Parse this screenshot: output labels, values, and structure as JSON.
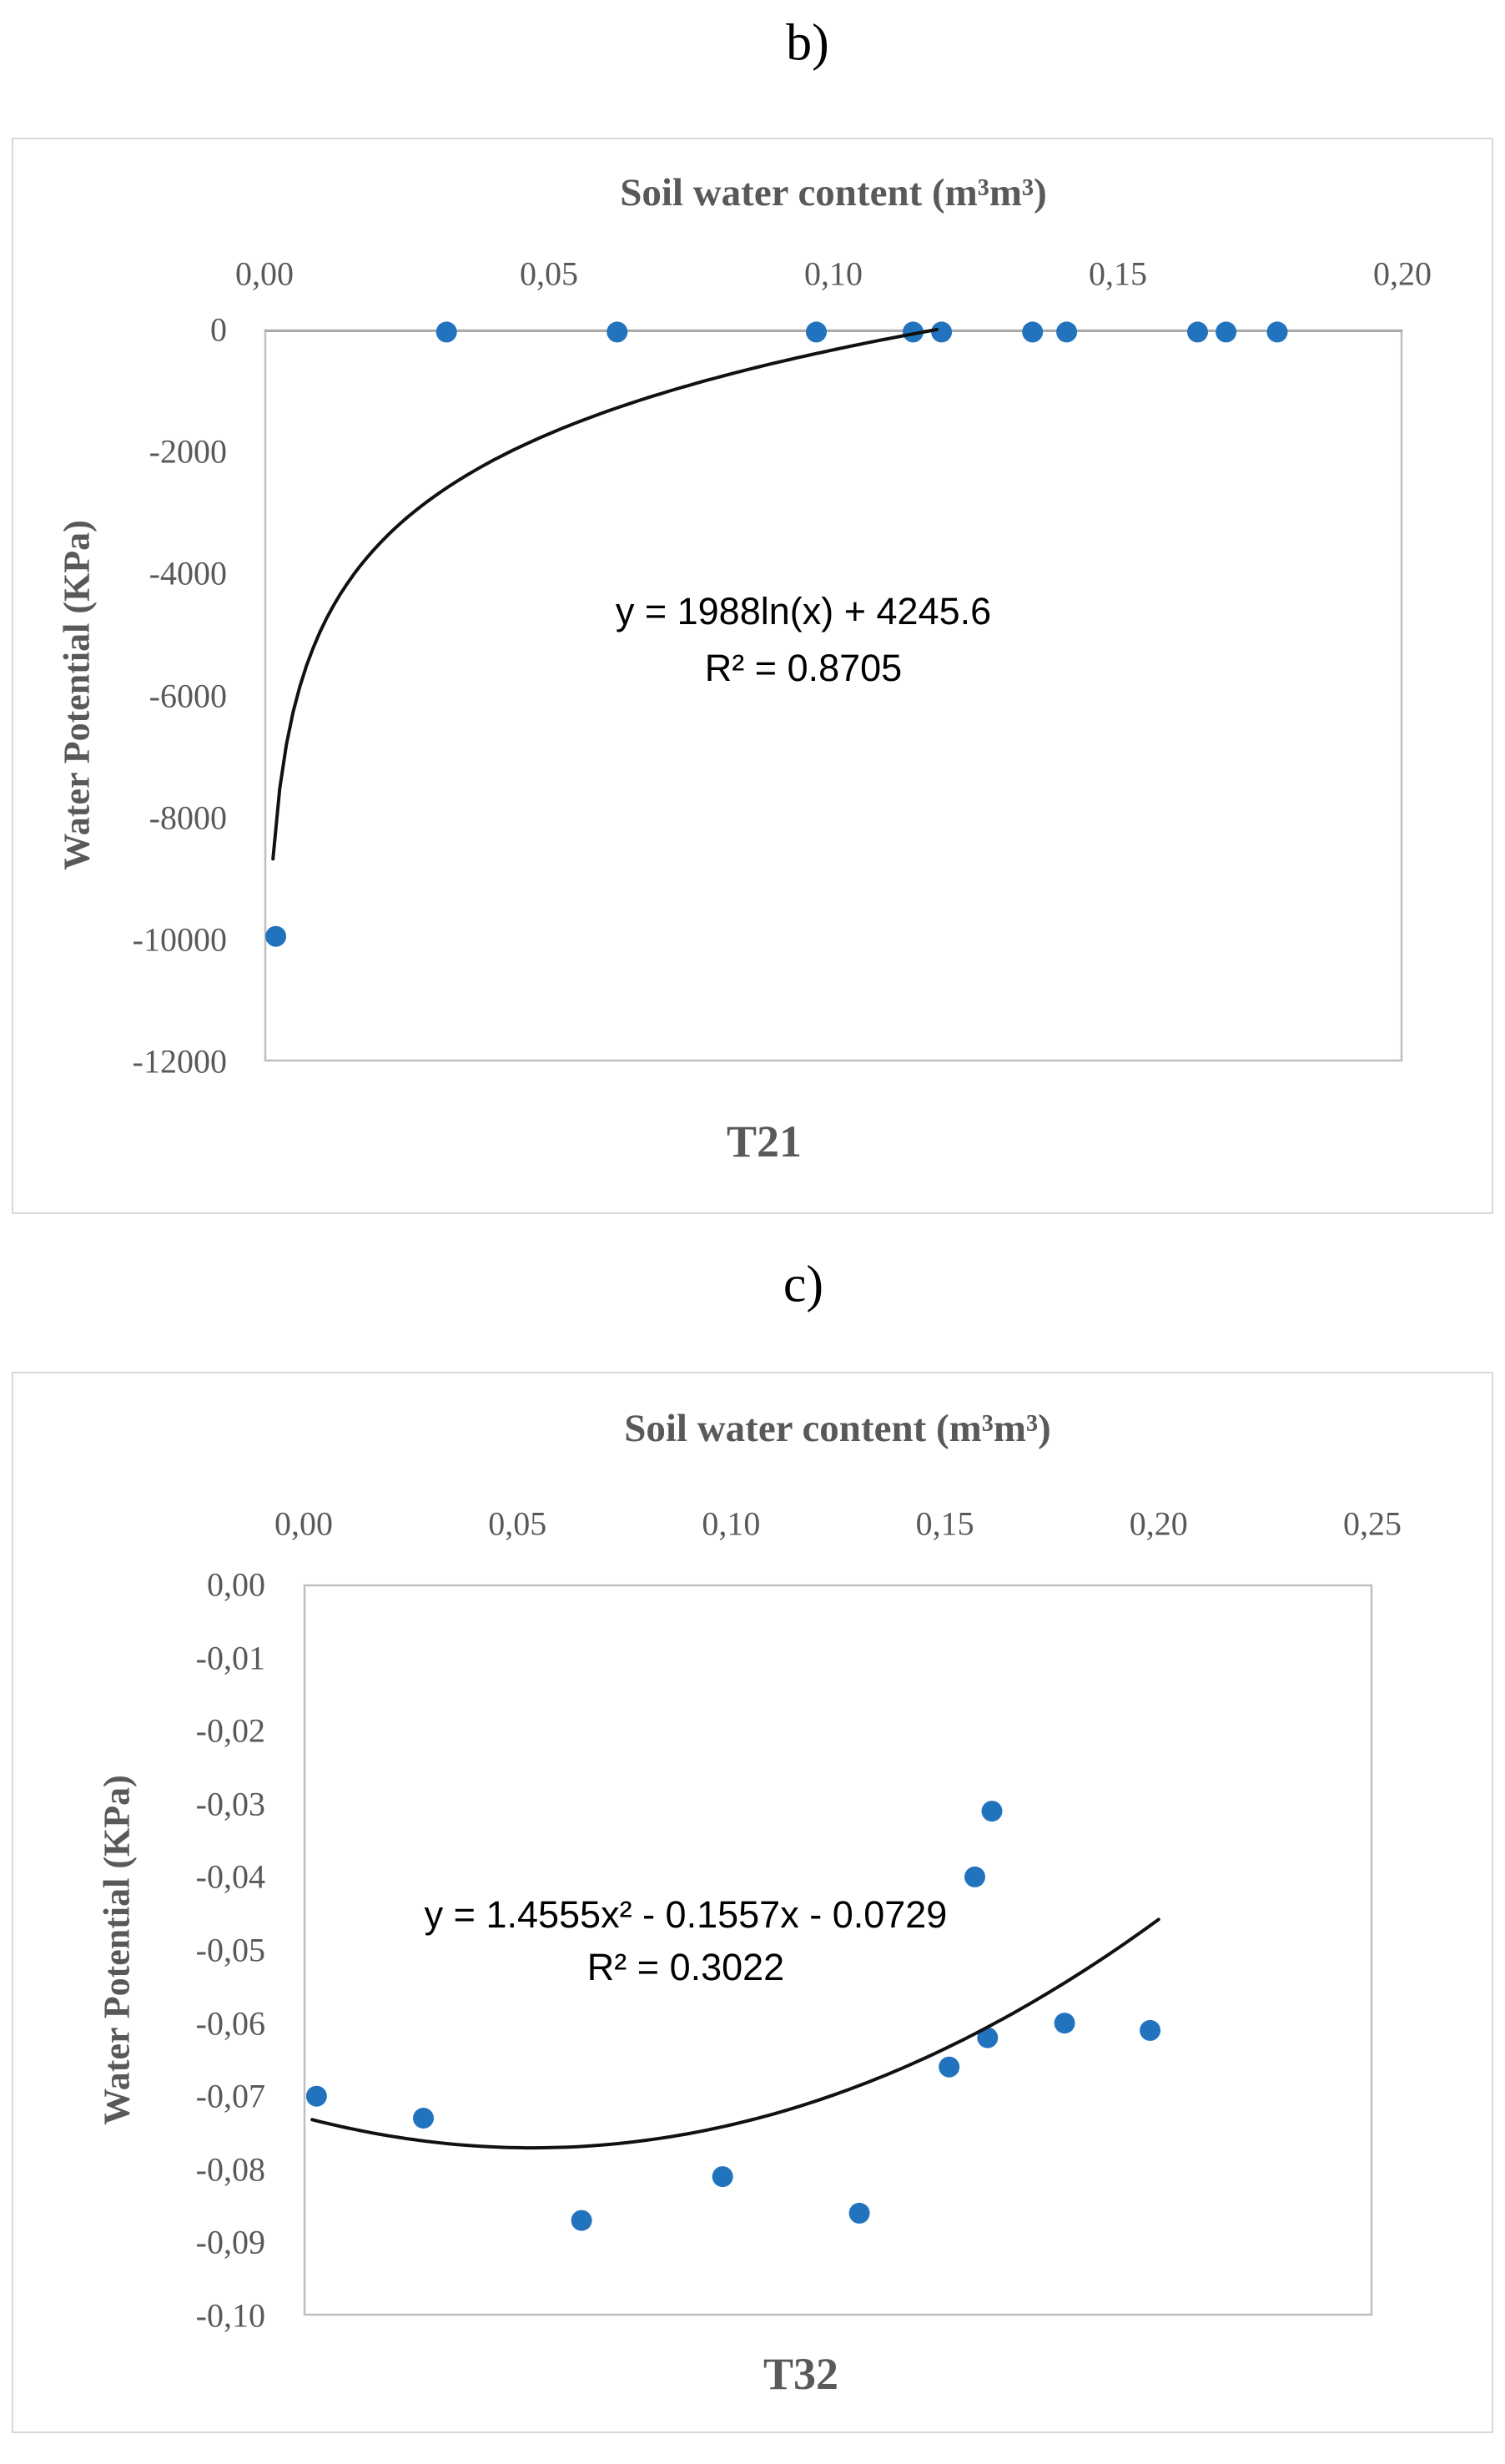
{
  "figure": {
    "panel_labels": [
      "b)",
      "c)"
    ]
  },
  "colors": {
    "point": "#2273BE",
    "trendline": "#111111",
    "axis_text": "#595959",
    "plot_border": "#BFBFBF",
    "axis_line": "#ABABAB",
    "panel_border": "#D8D8D8"
  },
  "chart_data": [
    {
      "id": "b",
      "type": "scatter",
      "panel_label": "b)",
      "title": "Soil water content (m³m³)",
      "ylabel": "Water Potential (KPa)",
      "bottom_label": "T21",
      "grid": false,
      "legend_position": "none",
      "xlim": [
        0,
        0.2
      ],
      "ylim": [
        -12000,
        0
      ],
      "x_ticks": {
        "values": [
          0,
          0.05,
          0.1,
          0.15,
          0.2
        ],
        "labels": [
          "0,00",
          "0,05",
          "0,10",
          "0,15",
          "0,20"
        ]
      },
      "y_ticks": {
        "values": [
          0,
          -2000,
          -4000,
          -6000,
          -8000,
          -10000,
          -12000
        ],
        "labels": [
          "0",
          "-2000",
          "-4000",
          "-6000",
          "-8000",
          "-10000",
          "-12000"
        ]
      },
      "points": [
        [
          0.002,
          -9950
        ],
        [
          0.032,
          -40
        ],
        [
          0.062,
          -40
        ],
        [
          0.097,
          -40
        ],
        [
          0.114,
          -40
        ],
        [
          0.119,
          -40
        ],
        [
          0.135,
          -40
        ],
        [
          0.141,
          -40
        ],
        [
          0.164,
          -40
        ],
        [
          0.169,
          -40
        ],
        [
          0.178,
          -40
        ]
      ],
      "trendline": {
        "kind": "logarithmic",
        "coefficients": {
          "a": 1988,
          "b": 4245.6
        },
        "x_start": 0.0015,
        "x_end": 0.1182,
        "equation": "y = 1988ln(x) + 4245.6",
        "r_squared": "R² = 0.8705"
      }
    },
    {
      "id": "c",
      "type": "scatter",
      "panel_label": "c)",
      "title": "Soil water content (m³m³)",
      "ylabel": "Water Potential (KPa)",
      "bottom_label": "T32",
      "grid": false,
      "legend_position": "none",
      "xlim": [
        0,
        0.25
      ],
      "ylim": [
        -0.1,
        0
      ],
      "x_ticks": {
        "values": [
          0,
          0.05,
          0.1,
          0.15,
          0.2,
          0.25
        ],
        "labels": [
          "0,00",
          "0,05",
          "0,10",
          "0,15",
          "0,20",
          "0,25"
        ]
      },
      "y_ticks": {
        "values": [
          0,
          -0.01,
          -0.02,
          -0.03,
          -0.04,
          -0.05,
          -0.06,
          -0.07,
          -0.08,
          -0.09,
          -0.1
        ],
        "labels": [
          "0,00",
          "-0,01",
          "-0,02",
          "-0,03",
          "-0,04",
          "-0,05",
          "-0,06",
          "-0,07",
          "-0,08",
          "-0,09",
          "-0,10"
        ]
      },
      "points": [
        [
          0.003,
          -0.07
        ],
        [
          0.028,
          -0.073
        ],
        [
          0.065,
          -0.087
        ],
        [
          0.098,
          -0.081
        ],
        [
          0.13,
          -0.086
        ],
        [
          0.151,
          -0.066
        ],
        [
          0.157,
          -0.04
        ],
        [
          0.16,
          -0.062
        ],
        [
          0.161,
          -0.031
        ],
        [
          0.178,
          -0.06
        ],
        [
          0.198,
          -0.061
        ]
      ],
      "trendline": {
        "kind": "quadratic",
        "coefficients": {
          "a": 1.4555,
          "b": -0.1557,
          "c": -0.0729
        },
        "x_start": 0.002,
        "x_end": 0.2,
        "equation": "y = 1.4555x² - 0.1557x - 0.0729",
        "r_squared": "R² = 0.3022"
      }
    }
  ]
}
